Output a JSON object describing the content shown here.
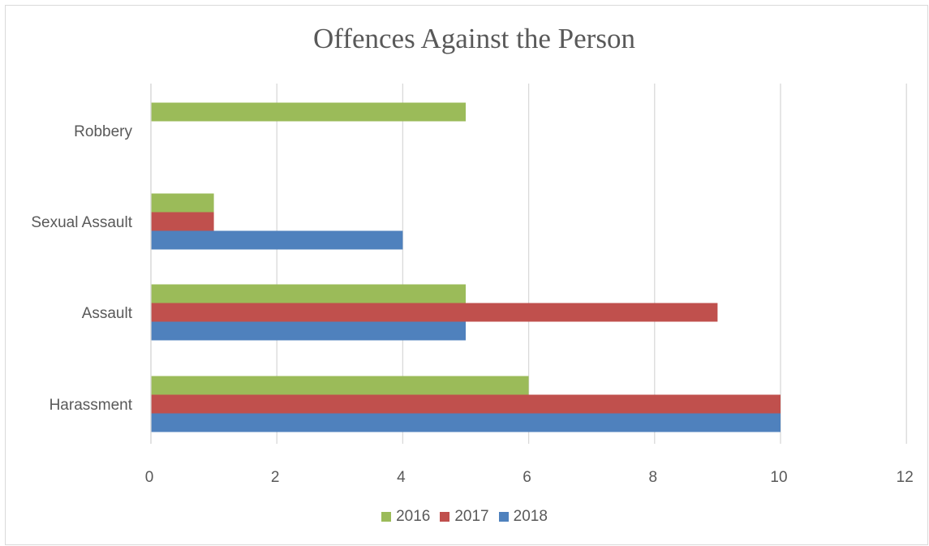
{
  "chart_data": {
    "type": "bar",
    "orientation": "horizontal",
    "title": "Offences Against the Person",
    "xlabel": "",
    "ylabel": "",
    "categories": [
      "Harassment",
      "Assault",
      "Sexual Assault",
      "Robbery"
    ],
    "series": [
      {
        "name": "2016",
        "color": "#9bbb59",
        "values": [
          6,
          5,
          1,
          5
        ]
      },
      {
        "name": "2017",
        "color": "#c0504d",
        "values": [
          10,
          9,
          1,
          0
        ]
      },
      {
        "name": "2018",
        "color": "#4f81bd",
        "values": [
          10,
          5,
          4,
          0
        ]
      }
    ],
    "xlim": [
      0,
      12
    ],
    "xticks": [
      "0",
      "2",
      "4",
      "6",
      "8",
      "10",
      "12"
    ],
    "grid": "vertical",
    "legend": "bottom"
  }
}
